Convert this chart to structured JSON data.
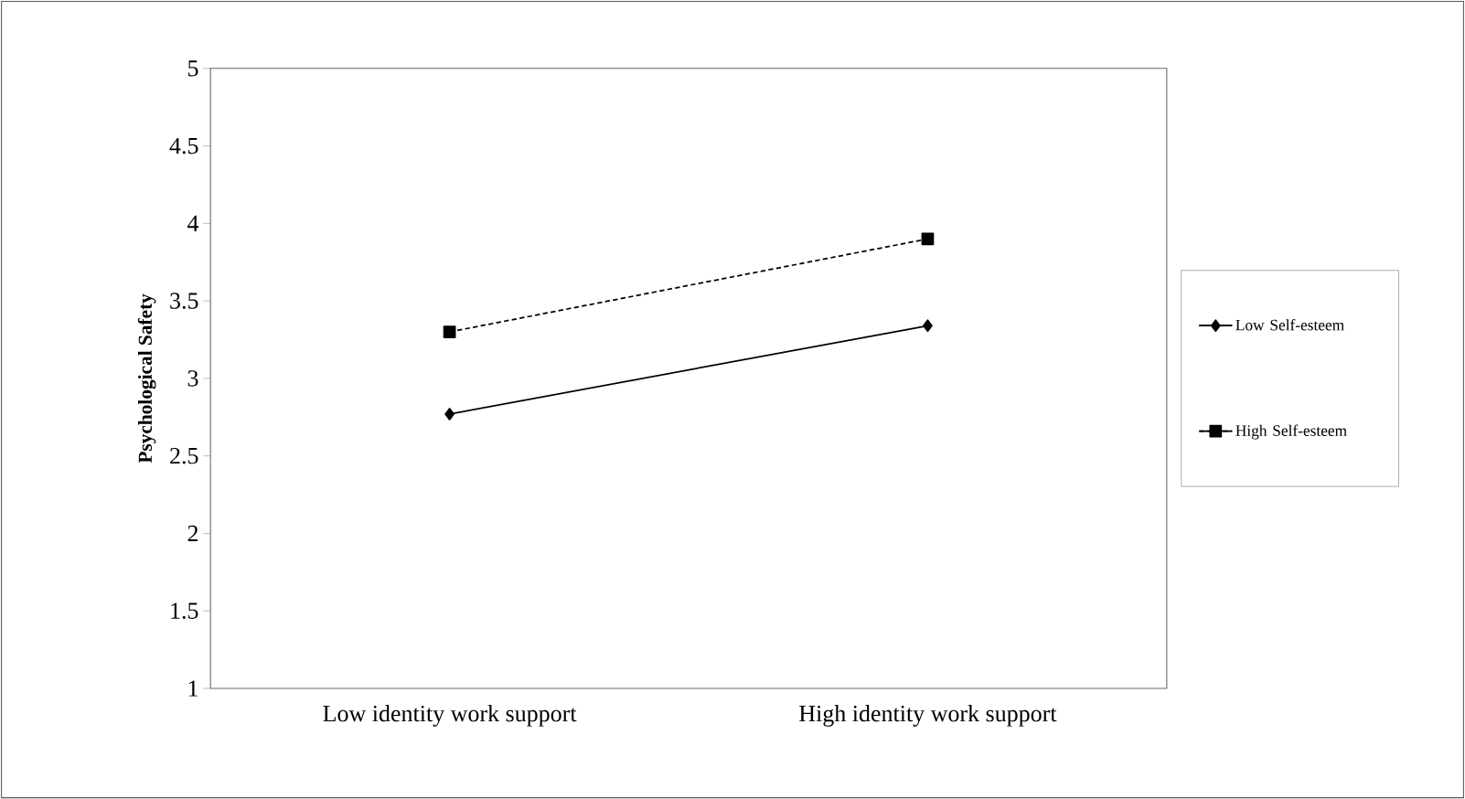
{
  "chart_data": {
    "type": "line",
    "ylabel": "Psychological Safety",
    "categories": [
      "Low identity work support",
      "High identity work support"
    ],
    "ylim": [
      1,
      5
    ],
    "yticks": [
      1,
      1.5,
      2,
      2.5,
      3,
      3.5,
      4,
      4.5,
      5
    ],
    "legend": "right",
    "series": [
      {
        "name": "Low Self-esteem",
        "color": "#000000",
        "marker": "diamond",
        "line_style": "solid",
        "values": [
          2.77,
          3.34
        ]
      },
      {
        "name": "High Self-esteem",
        "color": "#000000",
        "marker": "square",
        "line_style": "dashed",
        "values": [
          3.3,
          3.9
        ]
      }
    ]
  }
}
